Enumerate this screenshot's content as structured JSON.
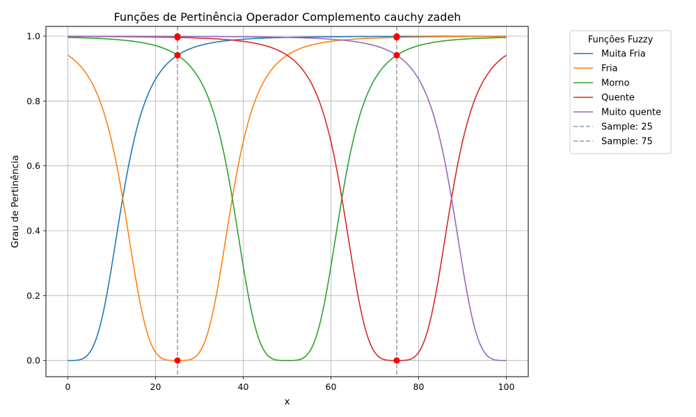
{
  "chart_data": {
    "type": "line",
    "title": "Funções de Pertinência Operador Complemento cauchy zadeh",
    "xlabel": "x",
    "ylabel": "Grau de Pertinência",
    "xlim": [
      -5,
      105
    ],
    "ylim": [
      -0.05,
      1.03
    ],
    "xticks": [
      0,
      20,
      40,
      60,
      80,
      100
    ],
    "yticks": [
      0.0,
      0.2,
      0.4,
      0.6,
      0.8,
      1.0
    ],
    "grid": true,
    "legend": {
      "title": "Funções Fuzzy",
      "placement": "outside-right"
    },
    "membership": {
      "type": "cauchy",
      "width": 12.5,
      "slope": 2,
      "complement": "zadeh"
    },
    "series": [
      {
        "name": "Muita Fria",
        "center": 0,
        "color": "#1f77b4"
      },
      {
        "name": "Fria",
        "center": 25,
        "color": "#ff7f0e"
      },
      {
        "name": "Morno",
        "center": 50,
        "color": "#2ca02c"
      },
      {
        "name": "Quente",
        "center": 75,
        "color": "#d62728"
      },
      {
        "name": "Muito quente",
        "center": 100,
        "color": "#9467bd"
      }
    ],
    "samples": [
      {
        "name": "Sample: 25",
        "x": 25,
        "color": "#999999",
        "marker_color": "#ff0000"
      },
      {
        "name": "Sample: 75",
        "x": 75,
        "color": "#999999",
        "marker_color": "#ff0000"
      }
    ]
  }
}
